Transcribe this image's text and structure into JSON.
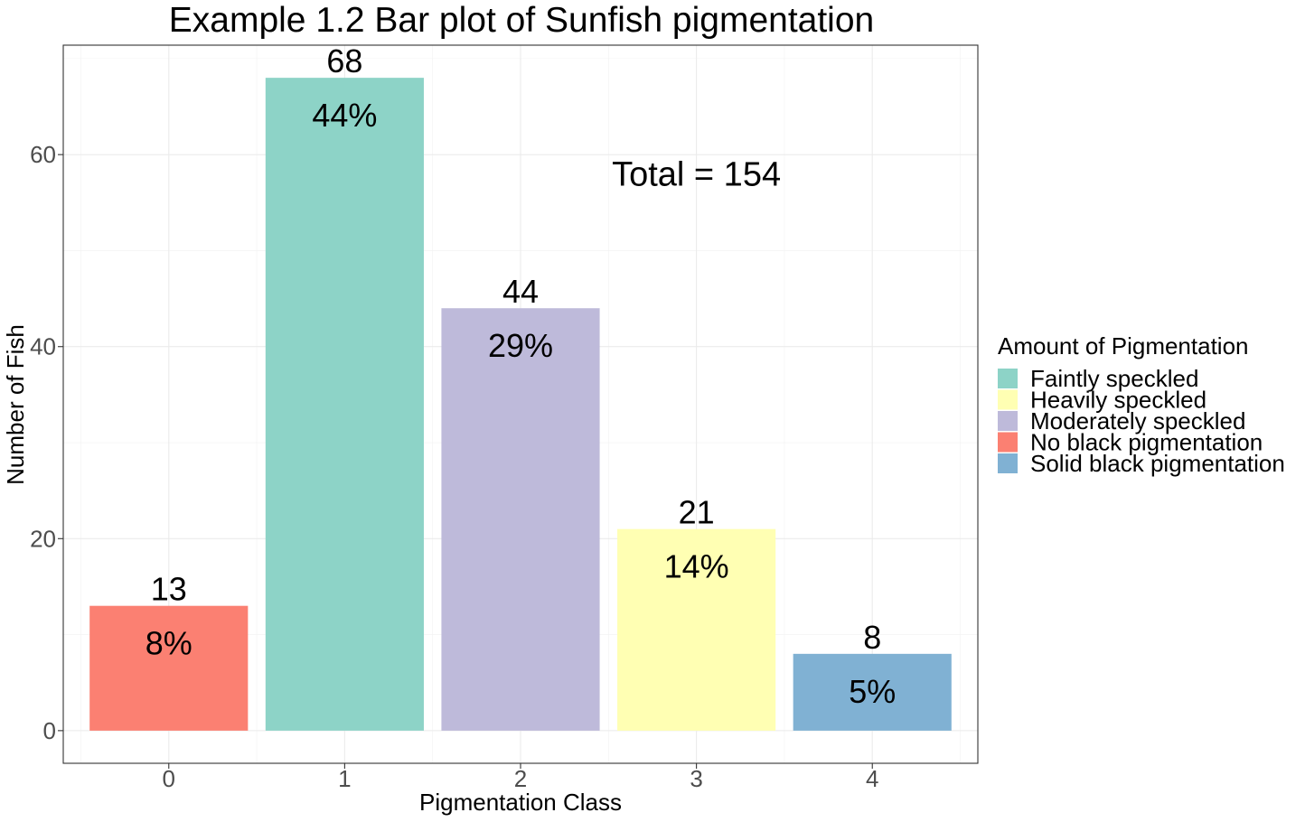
{
  "chart_data": {
    "type": "bar",
    "title": "Example 1.2 Bar plot of Sunfish pigmentation",
    "xlabel": "Pigmentation Class",
    "ylabel": "Number of Fish",
    "categories": [
      "0",
      "1",
      "2",
      "3",
      "4"
    ],
    "values": [
      13,
      68,
      44,
      21,
      8
    ],
    "percent_labels": [
      "8%",
      "44%",
      "29%",
      "14%",
      "5%"
    ],
    "count_labels": [
      "13",
      "68",
      "44",
      "21",
      "8"
    ],
    "bar_fill_group": [
      "No black pigmentation",
      "Faintly speckled",
      "Moderately speckled",
      "Heavily speckled",
      "Solid black pigmentation"
    ],
    "ylim": [
      -3.4,
      71.4
    ],
    "yticks": [
      0,
      20,
      40,
      60
    ],
    "ytick_labels": [
      "0",
      "20",
      "40",
      "60"
    ],
    "xlim": [
      -0.6,
      4.6
    ],
    "grid": true,
    "annotation": {
      "text": "Total = 154",
      "x": 3.0,
      "y": 58
    },
    "legend": {
      "title": "Amount of Pigmentation",
      "placement": "right",
      "entries": [
        {
          "label": "Faintly speckled",
          "color": "#8DD3C7"
        },
        {
          "label": "Heavily speckled",
          "color": "#FFFFB3"
        },
        {
          "label": "Moderately speckled",
          "color": "#BEBADA"
        },
        {
          "label": "No black pigmentation",
          "color": "#FB8072"
        },
        {
          "label": "Solid black pigmentation",
          "color": "#80B1D3"
        }
      ]
    }
  }
}
